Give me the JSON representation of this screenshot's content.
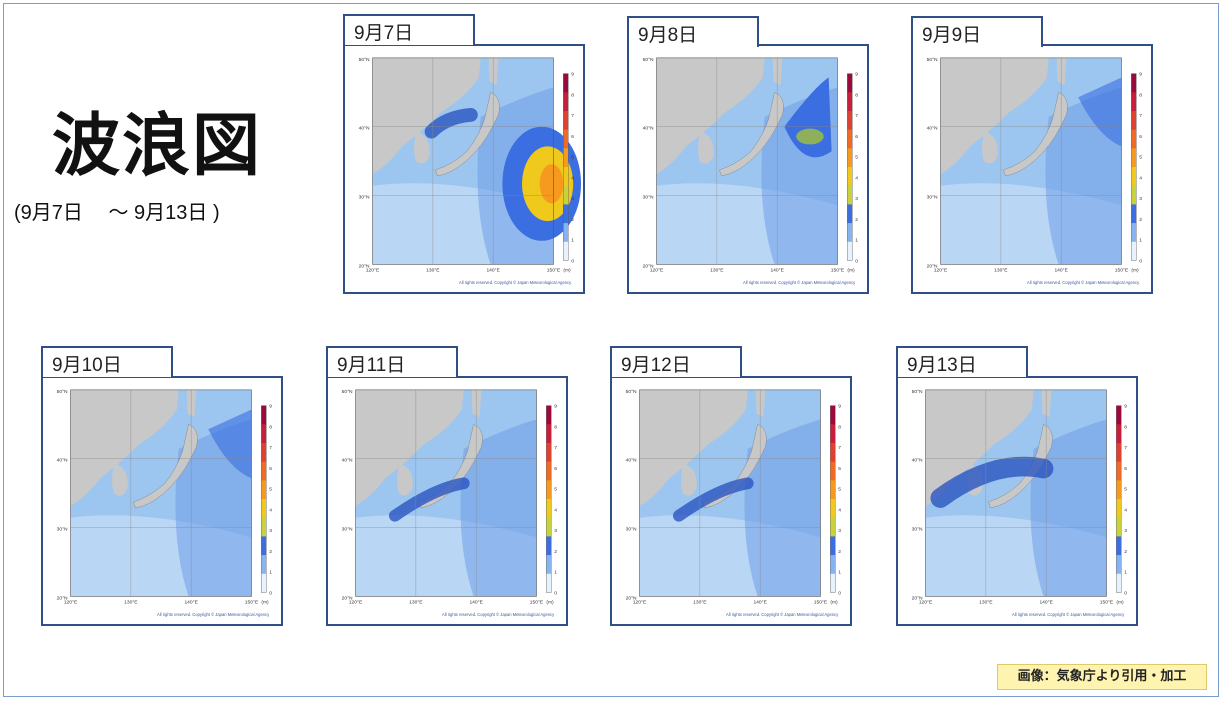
{
  "title": "波浪図",
  "subtitle": "(9月7日　 ～ 9月13日 )",
  "credit": "画像：気象庁より引用・加工",
  "map_common": {
    "lat_labels": [
      "50°N",
      "40°N",
      "30°N",
      "20°N"
    ],
    "lon_labels": [
      "120°E",
      "130°E",
      "140°E",
      "150°E"
    ],
    "scale_labels": [
      "9",
      "8",
      "7",
      "6",
      "5",
      "4",
      "3",
      "2",
      "1",
      "0"
    ],
    "unit": "(m)",
    "copyright": "All rights reserved. Copyright © Japan Meteorological Agency",
    "colors": {
      "land": "#c8c8c8",
      "sea_low": "#e3eefb",
      "sea_mid": "#9cc6ef",
      "sea_high": "#3f6fd8",
      "frame": "#2f4f86"
    }
  },
  "maps": [
    {
      "date": "9月7日",
      "max_wave_m": 4.0,
      "feature": "typhoon-east"
    },
    {
      "date": "9月8日",
      "max_wave_m": 4.0,
      "feature": "high-north-east"
    },
    {
      "date": "9月9日",
      "max_wave_m": 2.5,
      "feature": "moderate"
    },
    {
      "date": "9月10日",
      "max_wave_m": 2.0,
      "feature": "moderate"
    },
    {
      "date": "9月11日",
      "max_wave_m": 2.5,
      "feature": "japan-sea"
    },
    {
      "date": "9月12日",
      "max_wave_m": 2.5,
      "feature": "japan-sea"
    },
    {
      "date": "9月13日",
      "max_wave_m": 3.0,
      "feature": "japan-sea-strong"
    }
  ]
}
